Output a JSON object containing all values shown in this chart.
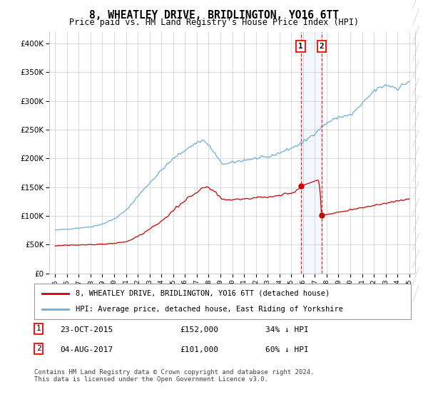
{
  "title": "8, WHEATLEY DRIVE, BRIDLINGTON, YO16 6TT",
  "subtitle": "Price paid vs. HM Land Registry's House Price Index (HPI)",
  "legend_line1": "8, WHEATLEY DRIVE, BRIDLINGTON, YO16 6TT (detached house)",
  "legend_line2": "HPI: Average price, detached house, East Riding of Yorkshire",
  "transaction1_date": "23-OCT-2015",
  "transaction1_price": 152000,
  "transaction1_label": "34% ↓ HPI",
  "transaction1_x": 2015.81,
  "transaction2_date": "04-AUG-2017",
  "transaction2_price": 101000,
  "transaction2_label": "60% ↓ HPI",
  "transaction2_x": 2017.59,
  "hpi_color": "#6baed6",
  "price_color": "#cc0000",
  "background_color": "#ffffff",
  "grid_color": "#cccccc",
  "footnote": "Contains HM Land Registry data © Crown copyright and database right 2024.\nThis data is licensed under the Open Government Licence v3.0.",
  "ylim": [
    0,
    420000
  ],
  "xlim": [
    1994.5,
    2025.5
  ],
  "hpi_knots_x": [
    1995,
    1996,
    1997,
    1998,
    1999,
    2000,
    2001,
    2002,
    2003,
    2004,
    2005,
    2006,
    2007,
    2007.5,
    2008,
    2008.5,
    2009,
    2009.5,
    2010,
    2011,
    2012,
    2013,
    2014,
    2015,
    2016,
    2017,
    2018,
    2019,
    2020,
    2021,
    2022,
    2023,
    2024,
    2025
  ],
  "hpi_knots_y": [
    75000,
    77000,
    79000,
    81000,
    86000,
    95000,
    110000,
    135000,
    158000,
    180000,
    200000,
    215000,
    228000,
    232000,
    222000,
    208000,
    192000,
    190000,
    193000,
    197000,
    200000,
    202000,
    210000,
    218000,
    228000,
    245000,
    262000,
    272000,
    275000,
    295000,
    318000,
    328000,
    322000,
    335000
  ],
  "pp_knots_x": [
    1995,
    1996,
    1997,
    1998,
    1999,
    2000,
    2001,
    2002,
    2003,
    2004,
    2005,
    2006,
    2007,
    2007.5,
    2008,
    2008.5,
    2009,
    2009.5,
    2010,
    2011,
    2012,
    2013,
    2014,
    2015,
    2015.81,
    2016.5,
    2017.59,
    2018,
    2019,
    2020,
    2021,
    2022,
    2023,
    2024,
    2025
  ],
  "pp_knots_y": [
    48000,
    49000,
    49500,
    50000,
    51000,
    52000,
    55000,
    65000,
    78000,
    92000,
    110000,
    128000,
    143000,
    149000,
    148000,
    140000,
    130000,
    128000,
    128000,
    130000,
    132000,
    133000,
    136000,
    140000,
    152000,
    162000,
    101000,
    102000,
    107000,
    110000,
    115000,
    118000,
    122000,
    126000,
    130000
  ]
}
